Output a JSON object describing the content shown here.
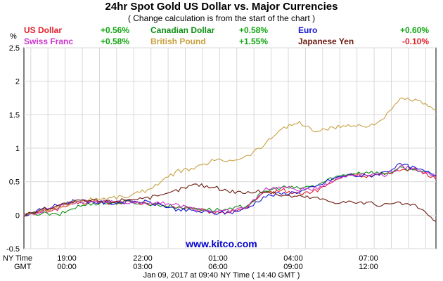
{
  "header": {
    "title": "24hr Spot Gold US Dollar vs. Major Currencies",
    "subtitle": "( Change calculation is from the start of the chart )"
  },
  "legend": [
    {
      "name": "US Dollar",
      "change": "+0.56%",
      "color": "#e0202a",
      "change_color": "#12a512"
    },
    {
      "name": "Canadian Dollar",
      "change": "+0.58%",
      "color": "#0e8f14",
      "change_color": "#12a512"
    },
    {
      "name": "Euro",
      "change": "+0.60%",
      "color": "#1414d2",
      "change_color": "#12a512"
    },
    {
      "name": "Swiss Franc",
      "change": "+0.58%",
      "color": "#cc33cc",
      "change_color": "#12a512"
    },
    {
      "name": "British Pound",
      "change": "+1.55%",
      "color": "#c8a040",
      "change_color": "#12a512"
    },
    {
      "name": "Japanese Yen",
      "change": "-0.10%",
      "color": "#6b1a0f",
      "change_color": "#e0202a"
    }
  ],
  "watermark": "www.kitco.com",
  "footer": {
    "timestamp": "Jan 09, 2017 at 09:40 NY Time ( 14:40 GMT )",
    "ny_label": "NY Time",
    "gmt_label": "GMT"
  },
  "chart_data": {
    "type": "line",
    "ylabel": "%",
    "ylim": [
      -0.5,
      2.5
    ],
    "y_ticks": [
      "2.5",
      "2",
      "1.5",
      "1",
      "0.5",
      "0",
      "-0.5"
    ],
    "x_ticks_ny": [
      "19:00",
      "22:00",
      "01:00",
      "04:00",
      "07:00"
    ],
    "x_ticks_gmt": [
      "00:00",
      "03:00",
      "06:00",
      "09:00",
      "12:00"
    ],
    "grid": true,
    "x_hours_from_start": [
      0,
      1,
      2,
      3,
      4,
      5,
      6,
      7,
      8,
      9,
      10,
      11,
      12,
      13,
      14,
      15,
      16,
      17,
      18,
      19,
      20,
      21,
      22,
      23,
      24
    ],
    "series": [
      {
        "name": "US Dollar",
        "color": "#e0202a",
        "values": [
          0.0,
          0.05,
          0.1,
          0.18,
          0.2,
          0.18,
          0.2,
          0.17,
          0.15,
          0.12,
          0.08,
          0.05,
          0.05,
          0.12,
          0.32,
          0.38,
          0.32,
          0.36,
          0.5,
          0.62,
          0.58,
          0.6,
          0.7,
          0.66,
          0.56
        ]
      },
      {
        "name": "Canadian Dollar",
        "color": "#0e8f14",
        "values": [
          0.0,
          0.03,
          0.0,
          0.12,
          0.18,
          0.18,
          0.2,
          0.18,
          0.15,
          0.12,
          0.1,
          0.08,
          0.08,
          0.15,
          0.35,
          0.42,
          0.4,
          0.44,
          0.56,
          0.62,
          0.65,
          0.62,
          0.7,
          0.68,
          0.58
        ]
      },
      {
        "name": "Euro",
        "color": "#1414d2",
        "values": [
          0.0,
          0.08,
          0.15,
          0.22,
          0.2,
          0.18,
          0.2,
          0.2,
          0.15,
          0.08,
          0.06,
          0.03,
          0.04,
          0.1,
          0.28,
          0.32,
          0.35,
          0.42,
          0.55,
          0.6,
          0.58,
          0.64,
          0.76,
          0.68,
          0.6
        ]
      },
      {
        "name": "Swiss Franc",
        "color": "#cc33cc",
        "values": [
          0.0,
          0.05,
          0.12,
          0.18,
          0.22,
          0.2,
          0.2,
          0.18,
          0.2,
          0.14,
          0.1,
          0.06,
          0.06,
          0.12,
          0.38,
          0.42,
          0.38,
          0.4,
          0.52,
          0.6,
          0.62,
          0.6,
          0.72,
          0.68,
          0.58
        ]
      },
      {
        "name": "British Pound",
        "color": "#c8a040",
        "values": [
          0.0,
          0.05,
          0.12,
          0.2,
          0.24,
          0.26,
          0.28,
          0.36,
          0.5,
          0.66,
          0.7,
          0.82,
          0.82,
          0.88,
          1.05,
          1.3,
          1.38,
          1.25,
          1.3,
          1.35,
          1.32,
          1.45,
          1.75,
          1.7,
          1.55
        ]
      },
      {
        "name": "Japanese Yen",
        "color": "#6b1a0f",
        "values": [
          0.0,
          0.08,
          0.15,
          0.2,
          0.22,
          0.2,
          0.24,
          0.26,
          0.28,
          0.38,
          0.46,
          0.42,
          0.36,
          0.34,
          0.36,
          0.3,
          0.28,
          0.26,
          0.2,
          0.2,
          0.18,
          0.15,
          0.18,
          0.12,
          -0.1
        ]
      }
    ]
  }
}
